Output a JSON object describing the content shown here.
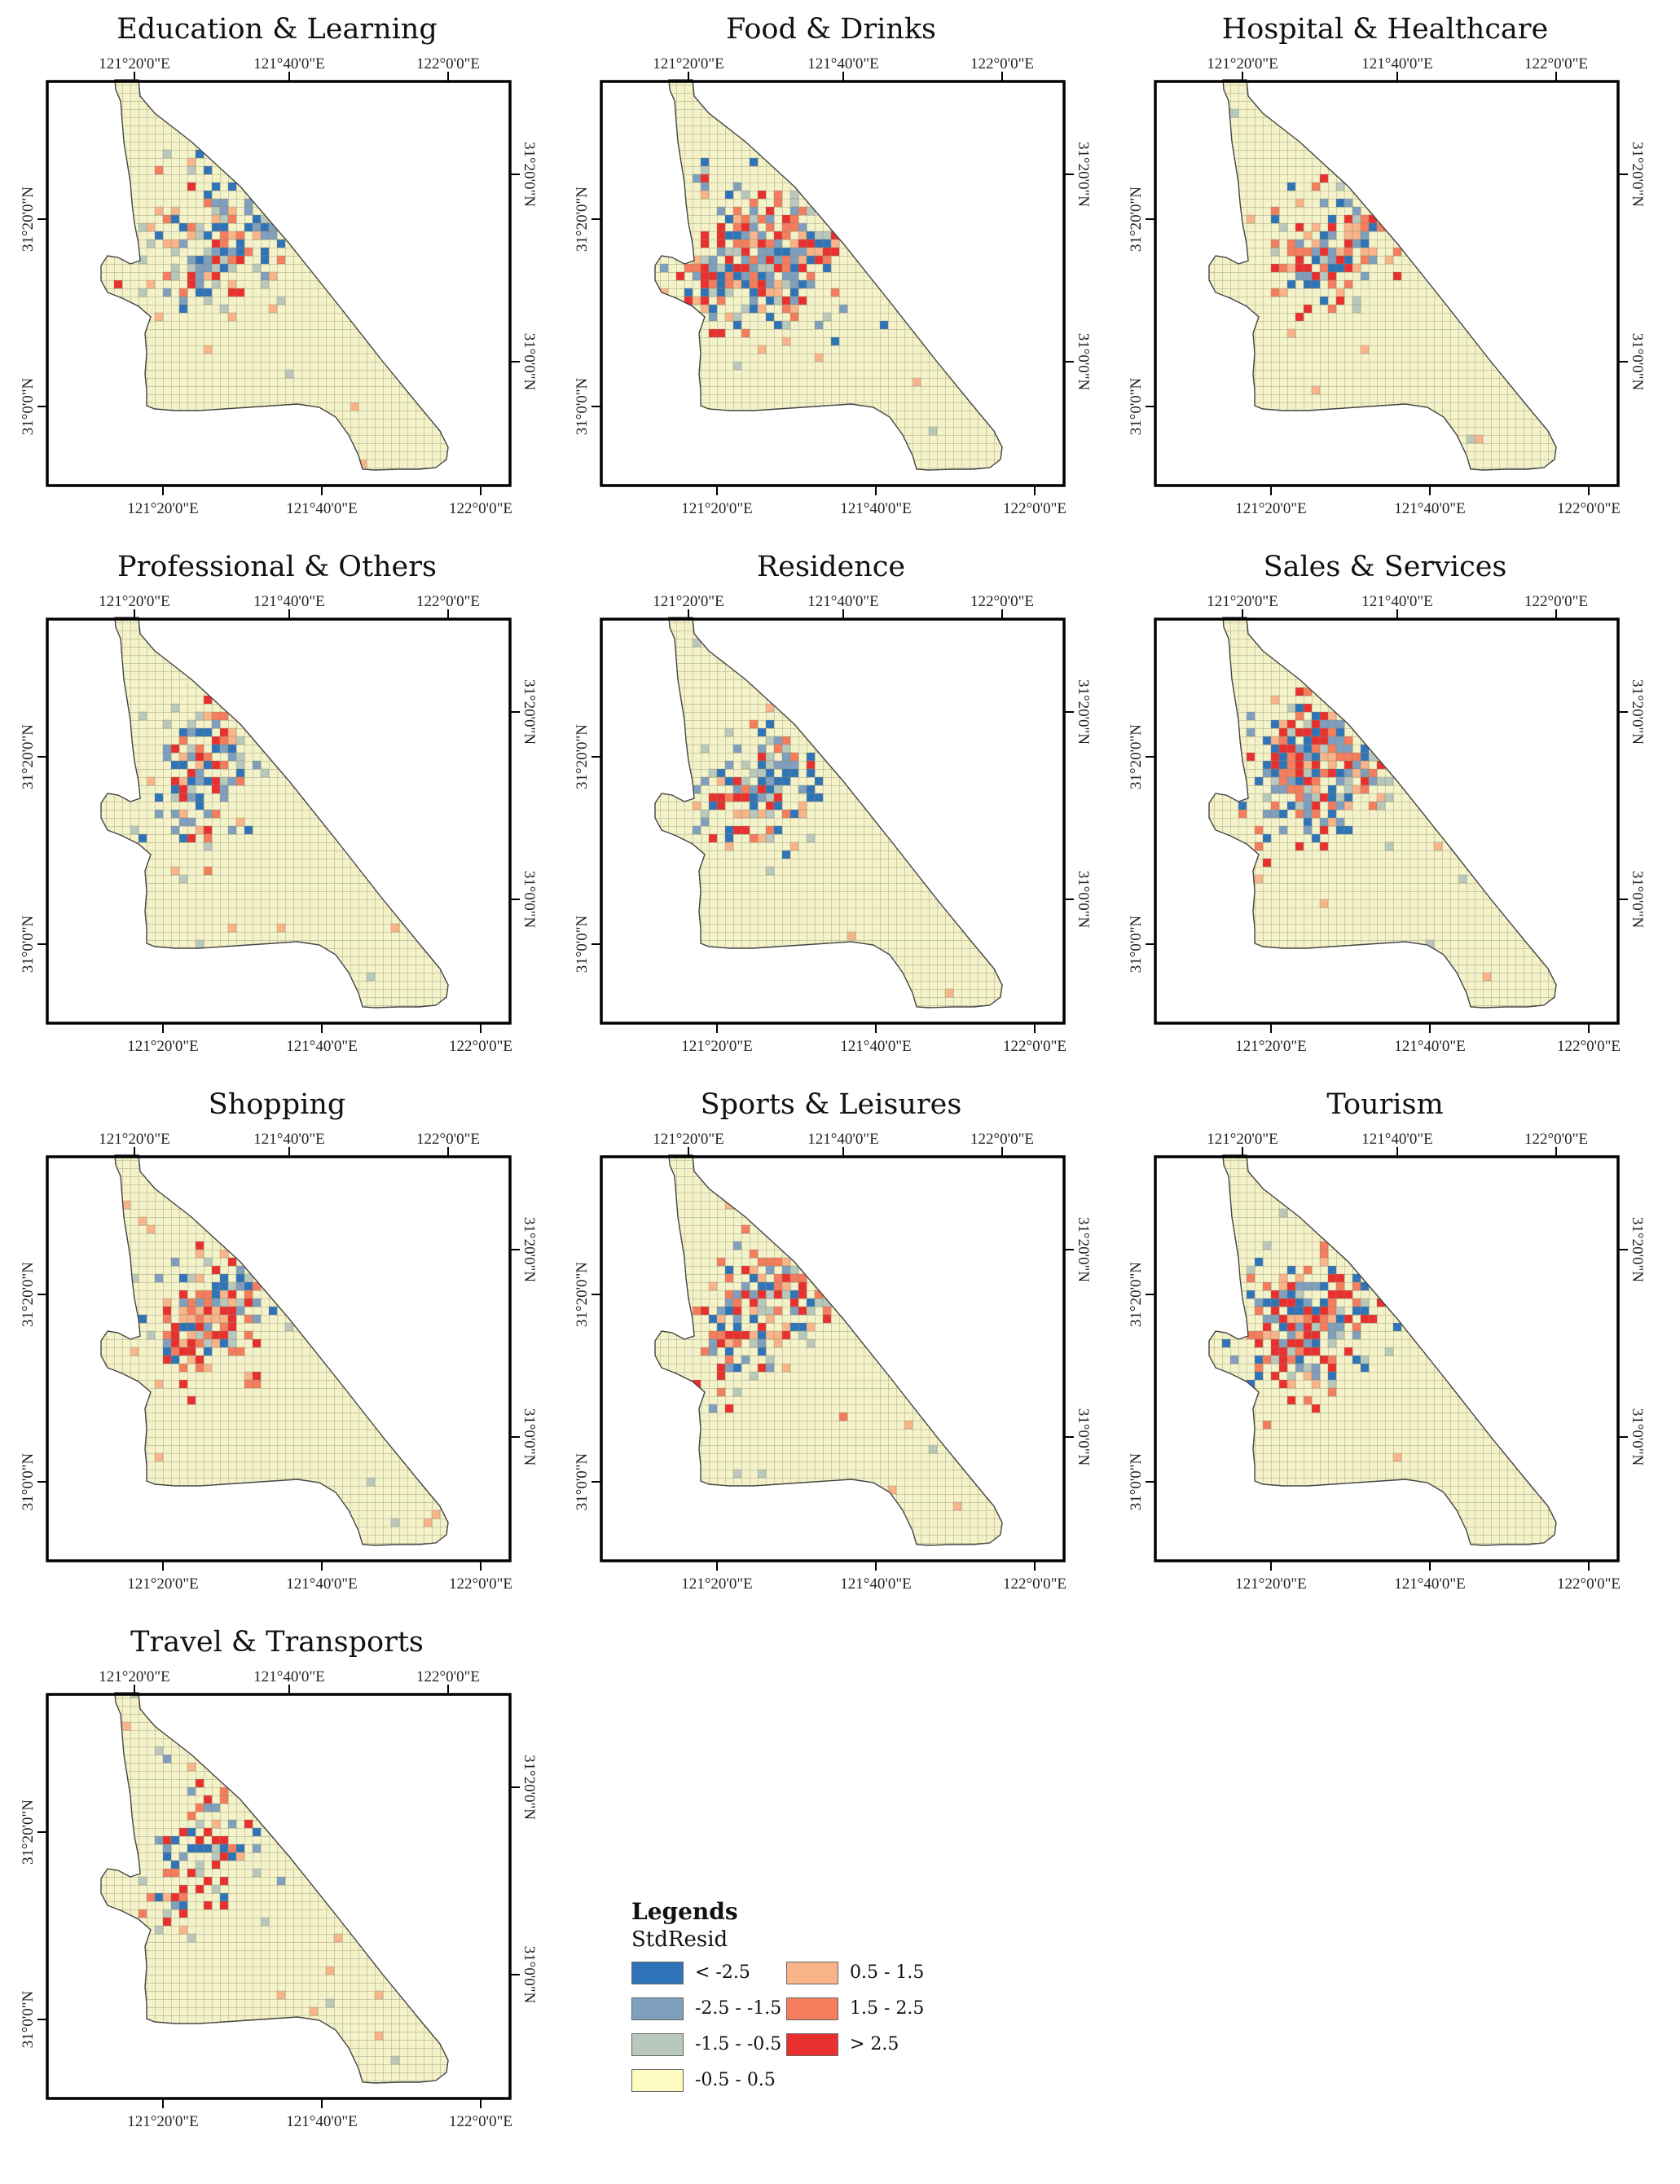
{
  "panels": [
    {
      "title": "Education & Learning",
      "pattern": "education"
    },
    {
      "title": "Food & Drinks",
      "pattern": "food"
    },
    {
      "title": "Hospital & Healthcare",
      "pattern": "hospital"
    },
    {
      "title": "Professional & Others",
      "pattern": "professional"
    },
    {
      "title": "Residence",
      "pattern": "residence"
    },
    {
      "title": "Sales & Services",
      "pattern": "sales"
    },
    {
      "title": "Shopping",
      "pattern": "shopping"
    },
    {
      "title": "Sports & Leisures",
      "pattern": "sports"
    },
    {
      "title": "Tourism",
      "pattern": "tourism"
    },
    {
      "title": "Travel & Transports",
      "pattern": "travel"
    }
  ],
  "axis_labels": {
    "top": [
      "121°20'0\"E",
      "121°40'0\"E",
      "122°0'0\"E"
    ],
    "bottom": [
      "121°20'0\"E",
      "121°40'0\"E",
      "122°0'0\"E"
    ],
    "left": [
      "31°20'0\"N",
      "31°0'0\"N"
    ],
    "right": [
      "31°20'0\"N",
      "31°0'0\"N"
    ]
  },
  "legend": {
    "title": "Legends",
    "subtitle": "StdResid",
    "classes": [
      {
        "label": "< -2.5",
        "color": "#2f74b8"
      },
      {
        "label": "-2.5 - -1.5",
        "color": "#7f9fbf"
      },
      {
        "label": "-1.5 - -0.5",
        "color": "#b8c8bc"
      },
      {
        "label": "-0.5 - 0.5",
        "color": "#fdfbc0"
      },
      {
        "label": "0.5 - 1.5",
        "color": "#f9b489"
      },
      {
        "label": "1.5 - 2.5",
        "color": "#f57c5c"
      },
      {
        "label": "> 2.5",
        "color": "#ea2f2f"
      }
    ]
  },
  "colors": {
    "background_cell": "#f4f2c8",
    "grid_line": "#8d8d72",
    "outline": "#444444",
    "frame": "#000000"
  }
}
